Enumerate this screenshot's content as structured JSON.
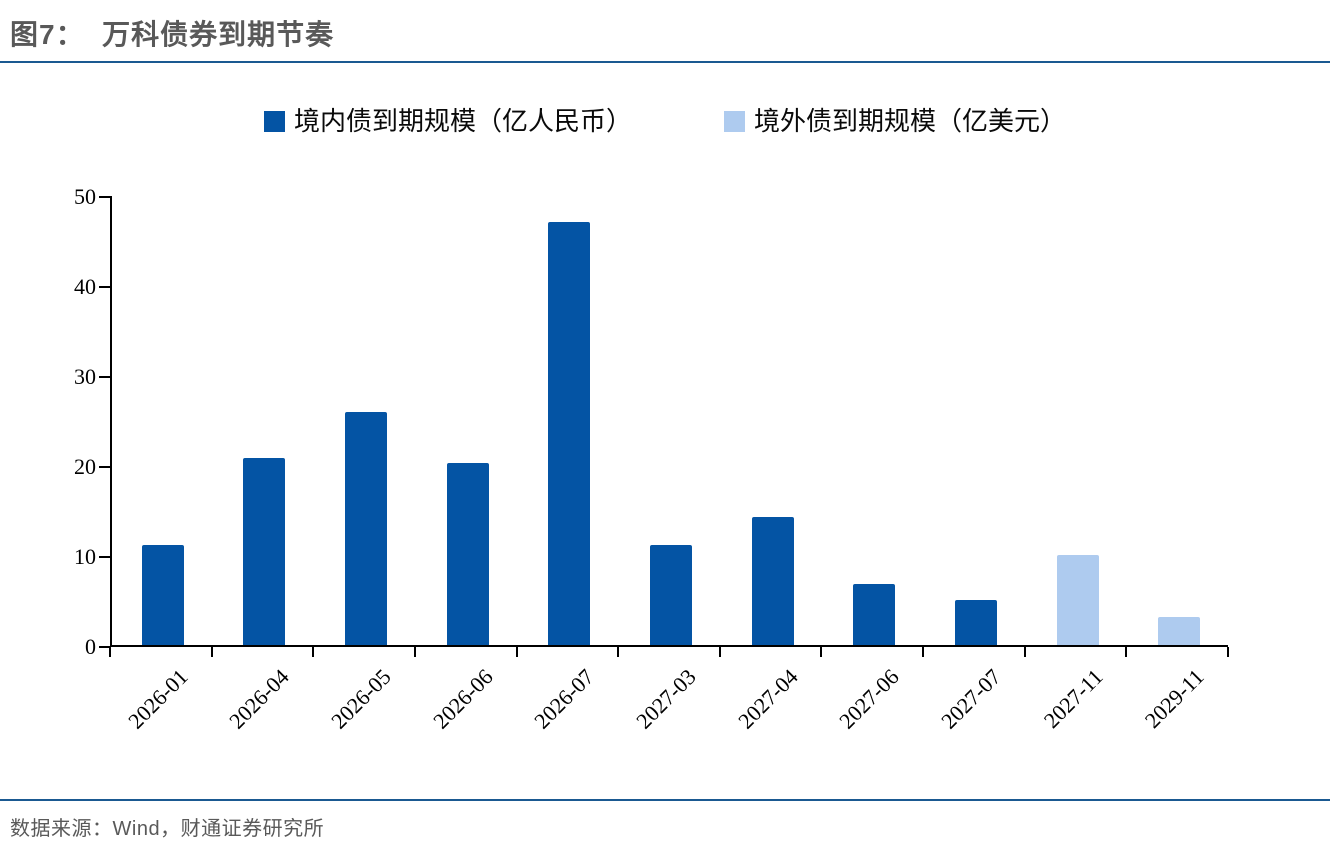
{
  "title": "图7：  万科债券到期节奏",
  "legend": [
    {
      "label": "境内债到期规模（亿人民币）",
      "color": "#0454A4"
    },
    {
      "label": "境外债到期规模（亿美元）",
      "color": "#AECBEF"
    }
  ],
  "footer": {
    "source": "数据来源：Wind，财通证券研究所"
  },
  "chart_data": {
    "type": "bar",
    "title": "万科债券到期节奏",
    "categories": [
      "2026-01",
      "2026-04",
      "2026-05",
      "2026-06",
      "2026-07",
      "2027-03",
      "2027-04",
      "2027-06",
      "2027-07",
      "2027-11",
      "2029-11"
    ],
    "series": [
      {
        "name": "境内债到期规模（亿人民币）",
        "color": "#0454A4",
        "values": [
          11.1,
          20.8,
          25.9,
          20.2,
          47.0,
          11.1,
          14.2,
          6.8,
          5.0,
          null,
          null
        ]
      },
      {
        "name": "境外债到期规模（亿美元）",
        "color": "#AECBEF",
        "values": [
          null,
          null,
          null,
          null,
          null,
          null,
          null,
          null,
          null,
          10.0,
          3.1
        ]
      }
    ],
    "xlabel": "",
    "ylabel": "",
    "ylim": [
      0,
      50
    ],
    "yticks": [
      0,
      10,
      20,
      30,
      40,
      50
    ],
    "grid": false,
    "legend_position": "top",
    "axis_color": "#000000"
  }
}
